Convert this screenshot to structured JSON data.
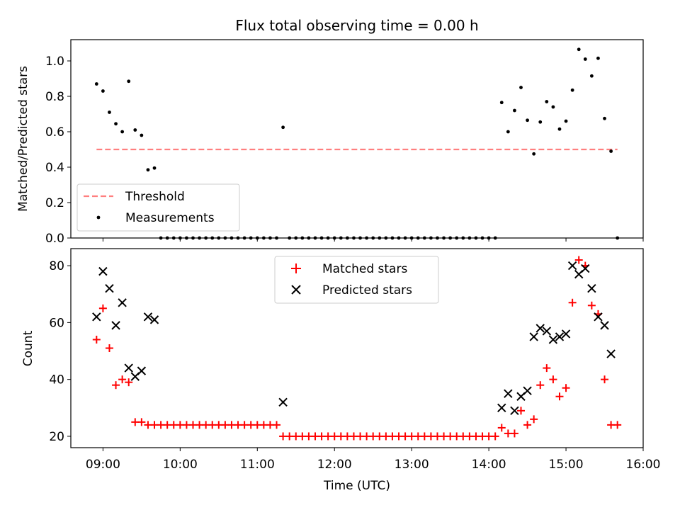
{
  "title": "Flux total observing time = 0.00 h",
  "colors": {
    "threshold": "#ff7f7f",
    "measurements": "#000000",
    "matched": "#ff0000",
    "predicted": "#000000"
  },
  "top": {
    "ylabel": "Matched/Predicted stars",
    "yticks": [
      "0.0",
      "0.2",
      "0.4",
      "0.6",
      "0.8",
      "1.0"
    ],
    "legend": {
      "threshold": "Threshold",
      "measurements": "Measurements",
      "placement": "lower-left"
    }
  },
  "bottom": {
    "ylabel": "Count",
    "yticks": [
      "20",
      "40",
      "60",
      "80"
    ],
    "legend": {
      "matched": "Matched stars",
      "predicted": "Predicted stars",
      "placement": "upper-center"
    }
  },
  "xaxis": {
    "label": "Time (UTC)",
    "ticks": [
      "09:00",
      "10:00",
      "11:00",
      "12:00",
      "13:00",
      "14:00",
      "15:00",
      "16:00"
    ]
  },
  "chart_data": [
    {
      "type": "scatter",
      "panel": "top",
      "ylabel": "Matched/Predicted stars",
      "xlim": [
        "08:35",
        "16:00"
      ],
      "ylim": [
        0,
        1.12
      ],
      "threshold": {
        "name": "Threshold",
        "y": 0.5,
        "x": [
          "08:55",
          "15:40"
        ],
        "style": "dashed"
      },
      "series": [
        {
          "name": "Measurements",
          "points": [
            [
              "08:55",
              0.87
            ],
            [
              "09:00",
              0.83
            ],
            [
              "09:05",
              0.71
            ],
            [
              "09:10",
              0.645
            ],
            [
              "09:15",
              0.6
            ],
            [
              "09:20",
              0.885
            ],
            [
              "09:25",
              0.61
            ],
            [
              "09:30",
              0.58
            ],
            [
              "09:35",
              0.385
            ],
            [
              "09:40",
              0.395
            ],
            [
              "09:45",
              0
            ],
            [
              "09:50",
              0
            ],
            [
              "09:55",
              0
            ],
            [
              "10:00",
              0
            ],
            [
              "10:05",
              0
            ],
            [
              "10:10",
              0
            ],
            [
              "10:15",
              0
            ],
            [
              "10:20",
              0
            ],
            [
              "10:25",
              0
            ],
            [
              "10:30",
              0
            ],
            [
              "10:35",
              0
            ],
            [
              "10:40",
              0
            ],
            [
              "10:45",
              0
            ],
            [
              "10:50",
              0
            ],
            [
              "10:55",
              0
            ],
            [
              "11:00",
              0
            ],
            [
              "11:05",
              0
            ],
            [
              "11:10",
              0
            ],
            [
              "11:15",
              0
            ],
            [
              "11:20",
              0.625
            ],
            [
              "11:25",
              0
            ],
            [
              "11:30",
              0
            ],
            [
              "11:35",
              0
            ],
            [
              "11:40",
              0
            ],
            [
              "11:45",
              0
            ],
            [
              "11:50",
              0
            ],
            [
              "11:55",
              0
            ],
            [
              "12:00",
              0
            ],
            [
              "12:05",
              0
            ],
            [
              "12:10",
              0
            ],
            [
              "12:15",
              0
            ],
            [
              "12:20",
              0
            ],
            [
              "12:25",
              0
            ],
            [
              "12:30",
              0
            ],
            [
              "12:35",
              0
            ],
            [
              "12:40",
              0
            ],
            [
              "12:45",
              0
            ],
            [
              "12:50",
              0
            ],
            [
              "12:55",
              0
            ],
            [
              "13:00",
              0
            ],
            [
              "13:05",
              0
            ],
            [
              "13:10",
              0
            ],
            [
              "13:15",
              0
            ],
            [
              "13:20",
              0
            ],
            [
              "13:25",
              0
            ],
            [
              "13:30",
              0
            ],
            [
              "13:35",
              0
            ],
            [
              "13:40",
              0
            ],
            [
              "13:45",
              0
            ],
            [
              "13:50",
              0
            ],
            [
              "13:55",
              0
            ],
            [
              "14:00",
              0
            ],
            [
              "14:05",
              0
            ],
            [
              "14:10",
              0.765
            ],
            [
              "14:15",
              0.6
            ],
            [
              "14:20",
              0.72
            ],
            [
              "14:25",
              0.85
            ],
            [
              "14:30",
              0.665
            ],
            [
              "14:35",
              0.475
            ],
            [
              "14:40",
              0.655
            ],
            [
              "14:45",
              0.77
            ],
            [
              "14:50",
              0.74
            ],
            [
              "14:55",
              0.615
            ],
            [
              "15:00",
              0.66
            ],
            [
              "15:05",
              0.835
            ],
            [
              "15:10",
              1.065
            ],
            [
              "15:15",
              1.01
            ],
            [
              "15:20",
              0.915
            ],
            [
              "15:25",
              1.015
            ],
            [
              "15:30",
              0.675
            ],
            [
              "15:35",
              0.49
            ],
            [
              "15:40",
              0
            ]
          ]
        }
      ]
    },
    {
      "type": "scatter",
      "panel": "bottom",
      "ylabel": "Count",
      "xlabel": "Time (UTC)",
      "xlim": [
        "08:35",
        "16:00"
      ],
      "ylim": [
        16,
        86
      ],
      "series": [
        {
          "name": "Matched stars",
          "marker": "plus",
          "points": [
            [
              "08:55",
              54
            ],
            [
              "09:00",
              65
            ],
            [
              "09:05",
              51
            ],
            [
              "09:10",
              38
            ],
            [
              "09:15",
              40
            ],
            [
              "09:20",
              39
            ],
            [
              "09:25",
              25
            ],
            [
              "09:30",
              25
            ],
            [
              "09:35",
              24
            ],
            [
              "09:40",
              24
            ],
            [
              "09:45",
              24
            ],
            [
              "09:50",
              24
            ],
            [
              "09:55",
              24
            ],
            [
              "10:00",
              24
            ],
            [
              "10:05",
              24
            ],
            [
              "10:10",
              24
            ],
            [
              "10:15",
              24
            ],
            [
              "10:20",
              24
            ],
            [
              "10:25",
              24
            ],
            [
              "10:30",
              24
            ],
            [
              "10:35",
              24
            ],
            [
              "10:40",
              24
            ],
            [
              "10:45",
              24
            ],
            [
              "10:50",
              24
            ],
            [
              "10:55",
              24
            ],
            [
              "11:00",
              24
            ],
            [
              "11:05",
              24
            ],
            [
              "11:10",
              24
            ],
            [
              "11:15",
              24
            ],
            [
              "11:20",
              20
            ],
            [
              "11:25",
              20
            ],
            [
              "11:30",
              20
            ],
            [
              "11:35",
              20
            ],
            [
              "11:40",
              20
            ],
            [
              "11:45",
              20
            ],
            [
              "11:50",
              20
            ],
            [
              "11:55",
              20
            ],
            [
              "12:00",
              20
            ],
            [
              "12:05",
              20
            ],
            [
              "12:10",
              20
            ],
            [
              "12:15",
              20
            ],
            [
              "12:20",
              20
            ],
            [
              "12:25",
              20
            ],
            [
              "12:30",
              20
            ],
            [
              "12:35",
              20
            ],
            [
              "12:40",
              20
            ],
            [
              "12:45",
              20
            ],
            [
              "12:50",
              20
            ],
            [
              "12:55",
              20
            ],
            [
              "13:00",
              20
            ],
            [
              "13:05",
              20
            ],
            [
              "13:10",
              20
            ],
            [
              "13:15",
              20
            ],
            [
              "13:20",
              20
            ],
            [
              "13:25",
              20
            ],
            [
              "13:30",
              20
            ],
            [
              "13:35",
              20
            ],
            [
              "13:40",
              20
            ],
            [
              "13:45",
              20
            ],
            [
              "13:50",
              20
            ],
            [
              "13:55",
              20
            ],
            [
              "14:00",
              20
            ],
            [
              "14:05",
              20
            ],
            [
              "14:10",
              23
            ],
            [
              "14:15",
              21
            ],
            [
              "14:20",
              21
            ],
            [
              "14:25",
              29
            ],
            [
              "14:30",
              24
            ],
            [
              "14:35",
              26
            ],
            [
              "14:40",
              38
            ],
            [
              "14:45",
              44
            ],
            [
              "14:50",
              40
            ],
            [
              "14:55",
              34
            ],
            [
              "15:00",
              37
            ],
            [
              "15:05",
              67
            ],
            [
              "15:10",
              82
            ],
            [
              "15:15",
              80
            ],
            [
              "15:20",
              66
            ],
            [
              "15:25",
              63
            ],
            [
              "15:30",
              40
            ],
            [
              "15:35",
              24
            ],
            [
              "15:40",
              24
            ]
          ]
        },
        {
          "name": "Predicted stars",
          "marker": "x",
          "points": [
            [
              "08:55",
              62
            ],
            [
              "09:00",
              78
            ],
            [
              "09:05",
              72
            ],
            [
              "09:10",
              59
            ],
            [
              "09:15",
              67
            ],
            [
              "09:20",
              44
            ],
            [
              "09:25",
              41
            ],
            [
              "09:30",
              43
            ],
            [
              "09:35",
              62
            ],
            [
              "09:40",
              61
            ],
            [
              "11:20",
              32
            ],
            [
              "14:10",
              30
            ],
            [
              "14:15",
              35
            ],
            [
              "14:20",
              29
            ],
            [
              "14:25",
              34
            ],
            [
              "14:30",
              36
            ],
            [
              "14:35",
              55
            ],
            [
              "14:40",
              58
            ],
            [
              "14:45",
              57
            ],
            [
              "14:50",
              54
            ],
            [
              "14:55",
              55
            ],
            [
              "15:00",
              56
            ],
            [
              "15:05",
              80
            ],
            [
              "15:10",
              77
            ],
            [
              "15:15",
              79
            ],
            [
              "15:20",
              72
            ],
            [
              "15:25",
              62
            ],
            [
              "15:30",
              59
            ],
            [
              "15:35",
              49
            ]
          ]
        }
      ]
    }
  ]
}
